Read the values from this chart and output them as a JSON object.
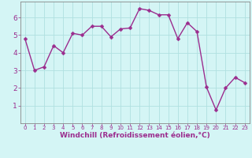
{
  "x": [
    0,
    1,
    2,
    3,
    4,
    5,
    6,
    7,
    8,
    9,
    10,
    11,
    12,
    13,
    14,
    15,
    16,
    17,
    18,
    19,
    20,
    21,
    22,
    23
  ],
  "y": [
    4.8,
    3.0,
    3.2,
    4.4,
    4.0,
    5.1,
    5.0,
    5.5,
    5.5,
    4.9,
    5.35,
    5.4,
    6.5,
    6.4,
    6.15,
    6.15,
    4.8,
    5.7,
    5.2,
    2.05,
    0.75,
    2.0,
    2.6,
    2.3
  ],
  "line_color": "#9b2d8e",
  "marker": "D",
  "marker_size": 2.5,
  "bg_color": "#d4f5f5",
  "grid_color": "#b0e0e0",
  "xlabel": "Windchill (Refroidissement éolien,°C)",
  "xlabel_color": "#9b2d8e",
  "tick_color": "#9b2d8e",
  "ylim": [
    0,
    6.9
  ],
  "xlim": [
    -0.5,
    23.5
  ],
  "yticks": [
    1,
    2,
    3,
    4,
    5,
    6
  ],
  "xticks": [
    0,
    1,
    2,
    3,
    4,
    5,
    6,
    7,
    8,
    9,
    10,
    11,
    12,
    13,
    14,
    15,
    16,
    17,
    18,
    19,
    20,
    21,
    22,
    23
  ],
  "spine_color": "#888888",
  "left_spine_color": "#888888",
  "line_width": 1.0
}
